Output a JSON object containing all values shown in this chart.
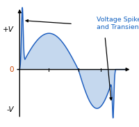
{
  "annotation_text": "Voltage Spikes\nand Transients",
  "annotation_color": "#1060C0",
  "line_color": "#2060C0",
  "fill_color": "#C5D8EE",
  "axis_color": "#000000",
  "background_color": "#FFFFFF",
  "ylabel_pos": "+V",
  "ylabel_neg": "-V",
  "ylabel_zero": "0",
  "figsize": [
    2.0,
    1.84
  ],
  "dpi": 100
}
